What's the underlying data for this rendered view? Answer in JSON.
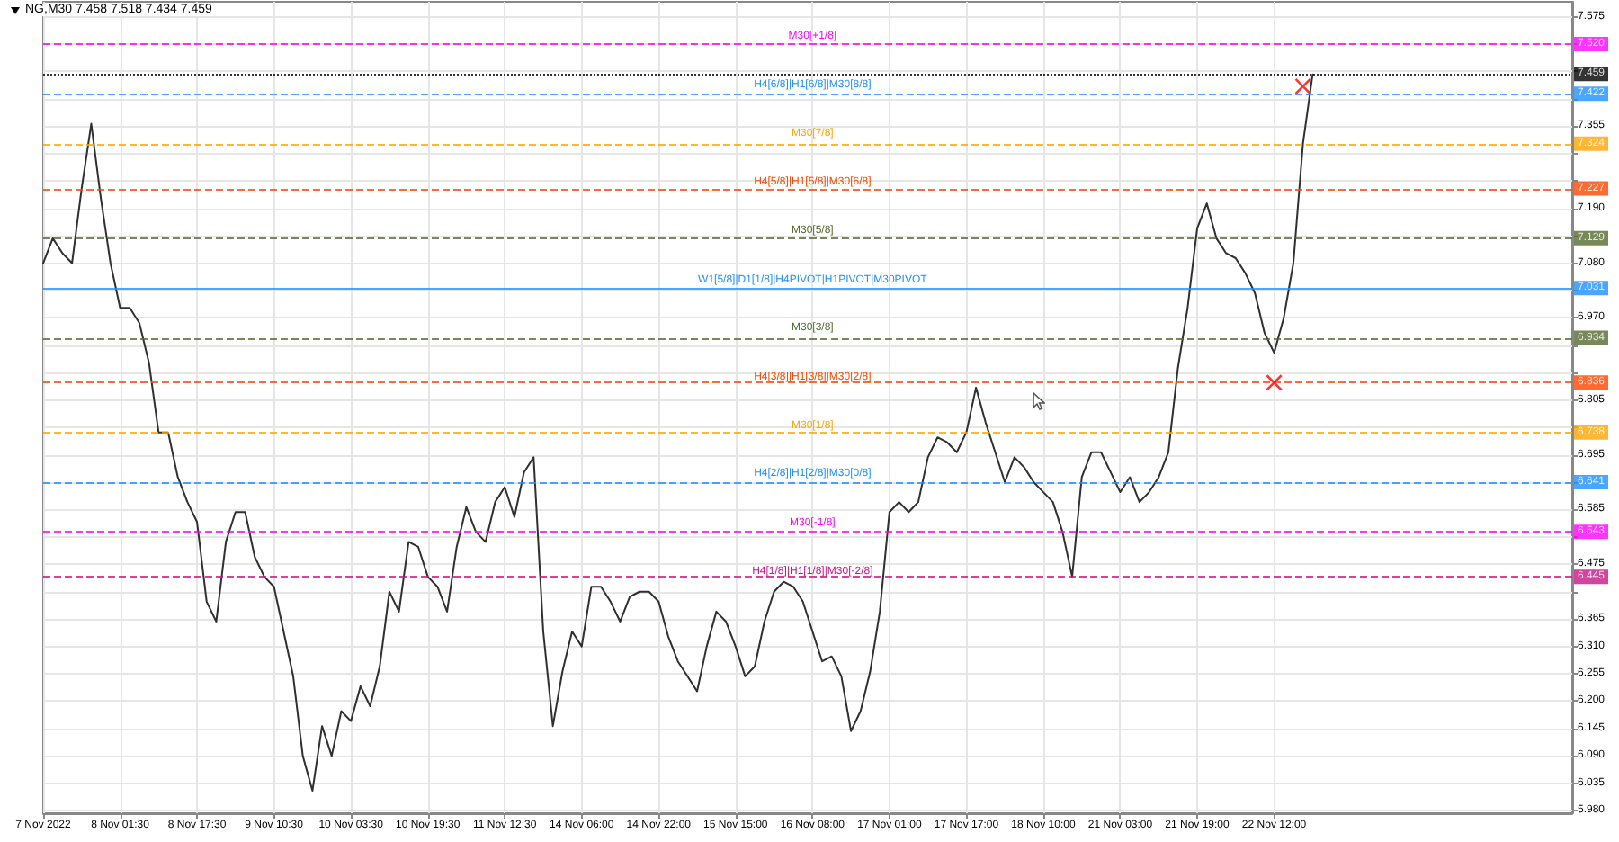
{
  "chart_data": {
    "type": "line",
    "title": "NG,M30 7.458 7.518 7.434 7.459",
    "grid": true,
    "categories": [
      "7 Nov 2022",
      null,
      null,
      null,
      null,
      null,
      null,
      null,
      "8 Nov 01:30",
      null,
      null,
      null,
      null,
      null,
      null,
      null,
      "8 Nov 17:30",
      null,
      null,
      null,
      null,
      null,
      null,
      null,
      "9 Nov 10:30",
      null,
      null,
      null,
      null,
      null,
      null,
      null,
      "10 Nov 03:30",
      null,
      null,
      null,
      null,
      null,
      null,
      null,
      "10 Nov 19:30",
      null,
      null,
      null,
      null,
      null,
      null,
      null,
      "11 Nov 12:30",
      null,
      null,
      null,
      null,
      null,
      null,
      null,
      "14 Nov 06:00",
      null,
      null,
      null,
      null,
      null,
      null,
      null,
      "14 Nov 22:00",
      null,
      null,
      null,
      null,
      null,
      null,
      null,
      "15 Nov 15:00",
      null,
      null,
      null,
      null,
      null,
      null,
      null,
      "16 Nov 08:00",
      null,
      null,
      null,
      null,
      null,
      null,
      null,
      "17 Nov 01:00",
      null,
      null,
      null,
      null,
      null,
      null,
      null,
      "17 Nov 17:00",
      null,
      null,
      null,
      null,
      null,
      null,
      null,
      "18 Nov 10:00",
      null,
      null,
      null,
      null,
      null,
      null,
      null,
      "21 Nov 03:00",
      null,
      null,
      null,
      null,
      null,
      null,
      null,
      "21 Nov 19:00",
      null,
      null,
      null,
      null,
      null,
      null,
      null,
      "22 Nov 12:00",
      null,
      null,
      null,
      null,
      null,
      null,
      null,
      null,
      null,
      null,
      null,
      null,
      null,
      null,
      null,
      null,
      null,
      null,
      null,
      null,
      null,
      null,
      null,
      null,
      null,
      null,
      null,
      null,
      null,
      null,
      null
    ],
    "ylim": [
      5.975,
      7.605
    ],
    "yticks": [
      {
        "value": 5.98,
        "label": "5.980"
      },
      6.035,
      {
        "value": 6.09,
        "label": "6.090"
      },
      6.145,
      {
        "value": 6.2,
        "label": "6.200"
      },
      6.255,
      {
        "value": 6.31,
        "label": "6.310"
      },
      6.365,
      {
        "value": 6.42,
        "label": null
      },
      6.475,
      {
        "value": 6.53,
        "label": null
      },
      6.585,
      {
        "value": 6.64,
        "label": null
      },
      6.695,
      {
        "value": 6.75,
        "label": null
      },
      6.805,
      {
        "value": 6.86,
        "label": null
      },
      {
        "value": 6.915,
        "label": null
      },
      {
        "value": 6.97,
        "label": "6.970"
      },
      {
        "value": 7.025,
        "label": null
      },
      {
        "value": 7.08,
        "label": "7.080"
      },
      {
        "value": 7.135,
        "label": null
      },
      {
        "value": 7.19,
        "label": "7.190"
      },
      {
        "value": 7.245,
        "label": null
      },
      {
        "value": 7.3,
        "label": null
      },
      7.355,
      {
        "value": 7.41,
        "label": null
      },
      {
        "value": 7.465,
        "label": null
      },
      {
        "value": 7.52,
        "label": null
      },
      7.575
    ],
    "annotations": [
      {
        "text": "7.520",
        "y": 7.52
      },
      {
        "text": "7.459",
        "y": 7.459
      },
      {
        "text": "7.422",
        "y": 7.422
      },
      {
        "text": "7.324",
        "y": 7.324
      },
      {
        "text": "7.227",
        "y": 7.227
      },
      {
        "text": "7.129",
        "y": 7.129
      },
      {
        "text": "7.031",
        "y": 7.031
      },
      {
        "text": "6.934",
        "y": 6.934
      },
      {
        "text": "6.836",
        "y": 6.836
      },
      {
        "text": "6.738",
        "y": 6.738
      },
      {
        "text": "6.641",
        "y": 6.641
      },
      {
        "text": "6.543",
        "y": 6.543
      },
      {
        "text": "6.445",
        "y": 6.445
      }
    ],
    "series": [
      {
        "type": "line",
        "color": "#303030",
        "values": [
          7.08,
          7.13,
          7.1,
          7.08,
          7.23,
          7.36,
          7.21,
          7.08,
          6.99,
          6.99,
          6.96,
          6.88,
          6.74,
          6.74,
          6.65,
          6.6,
          6.56,
          6.4,
          6.36,
          6.52,
          6.58,
          6.58,
          6.49,
          6.45,
          6.43,
          6.34,
          6.25,
          6.09,
          6.02,
          6.15,
          6.09,
          6.18,
          6.16,
          6.23,
          6.19,
          6.27,
          6.42,
          6.38,
          6.52,
          6.51,
          6.45,
          6.43,
          6.38,
          6.51,
          6.59,
          6.54,
          6.52,
          6.6,
          6.63,
          6.57,
          6.66,
          6.69,
          6.34,
          6.15,
          6.26,
          6.34,
          6.31,
          6.43,
          6.43,
          6.4,
          6.36,
          6.41,
          6.42,
          6.42,
          6.4,
          6.33,
          6.28,
          6.25,
          6.22,
          6.31,
          6.38,
          6.36,
          6.31,
          6.25,
          6.27,
          6.36,
          6.42,
          6.44,
          6.43,
          6.4,
          6.34,
          6.28,
          6.29,
          6.25,
          6.14,
          6.18,
          6.26,
          6.38,
          6.58,
          6.6,
          6.58,
          6.6,
          6.69,
          6.73,
          6.72,
          6.7,
          6.74,
          6.83,
          6.76,
          6.7,
          6.64,
          6.69,
          6.67,
          6.64,
          6.62,
          6.6,
          6.54,
          6.45,
          6.65,
          6.7,
          6.7,
          6.66,
          6.62,
          6.65,
          6.6,
          6.62,
          6.65,
          6.7,
          6.87,
          6.99,
          7.15,
          7.2,
          7.13,
          7.1,
          7.09,
          7.06,
          7.02,
          6.94,
          6.9,
          6.97,
          7.08,
          7.32,
          7.459,
          null,
          null,
          null,
          null,
          null,
          null,
          null,
          null,
          null,
          null,
          null,
          null,
          null,
          null,
          null,
          null,
          null,
          null,
          null,
          null,
          null,
          null,
          null,
          null,
          null,
          null,
          null
        ]
      },
      {
        "type": "scatter",
        "color": "#ff0000",
        "marker": "cross",
        "values": [
          null,
          null,
          null,
          null,
          null,
          null,
          null,
          null,
          null,
          null,
          null,
          null,
          null,
          null,
          null,
          null,
          null,
          null,
          null,
          null,
          null,
          null,
          null,
          null,
          null,
          null,
          null,
          null,
          null,
          null,
          null,
          null,
          null,
          null,
          null,
          null,
          null,
          null,
          null,
          null,
          null,
          null,
          null,
          null,
          null,
          null,
          null,
          null,
          null,
          null,
          null,
          null,
          null,
          null,
          null,
          null,
          null,
          null,
          null,
          null,
          null,
          null,
          null,
          null,
          null,
          null,
          null,
          null,
          null,
          null,
          null,
          null,
          null,
          null,
          null,
          null,
          null,
          null,
          null,
          null,
          null,
          null,
          null,
          null,
          null,
          null,
          null,
          null,
          null,
          null,
          null,
          null,
          null,
          null,
          null,
          null,
          null,
          null,
          null,
          null,
          null,
          null,
          null,
          null,
          null,
          null,
          null,
          null,
          null,
          null,
          null,
          null,
          null,
          null,
          null,
          null,
          null,
          null,
          null,
          null,
          null,
          null,
          null,
          null,
          null,
          null,
          null,
          null,
          6.84,
          null,
          null,
          7.435,
          null,
          null,
          null,
          null,
          null,
          null,
          null,
          null,
          null,
          null,
          null,
          null,
          null,
          null,
          null,
          null,
          null,
          null,
          null,
          null,
          null,
          null,
          null,
          null,
          null,
          null,
          null,
          null
        ]
      }
    ],
    "ref_lines": [
      {
        "axis": "y",
        "value": 7.52,
        "label": "M30[+1/8]",
        "color": "#ff00ff",
        "line_style": "dashed"
      },
      {
        "axis": "y",
        "value": 7.459,
        "color": "#000000",
        "line_style": "dotted"
      },
      {
        "axis": "y",
        "value": 7.422,
        "label": "H4[6/8]|H1[6/8]|M30[8/8]",
        "color": "#1e90ff",
        "line_style": "dashed"
      },
      {
        "axis": "y",
        "value": 7.324,
        "label": "M30[7/8]",
        "color": "#ffa500",
        "line_style": "dashed"
      },
      {
        "axis": "y",
        "value": 7.227,
        "label": "H4[5/8]|H1[5/8]|M30[6/8]",
        "color": "#ff4500",
        "line_style": "dashed"
      },
      {
        "axis": "y",
        "value": 7.129,
        "label": "M30[5/8]",
        "color": "#556b2f",
        "line_style": "dashed"
      },
      {
        "axis": "y",
        "value": 7.031,
        "label": "W1[5/8]|D1[1/8]|H4PIVOT|H1PIVOT|M30PIVOT",
        "color": "#1e90ff",
        "line_style": "solid"
      },
      {
        "axis": "y",
        "value": 6.934,
        "label": "M30[3/8]",
        "color": "#556b2f",
        "line_style": "dashed"
      },
      {
        "axis": "y",
        "value": 6.836,
        "label": "H4[3/8]|H1[3/8]|M30[2/8]",
        "color": "#ff4500",
        "line_style": "dashed"
      },
      {
        "axis": "y",
        "value": 6.738,
        "label": "M30[1/8]",
        "color": "#ffa500",
        "line_style": "dashed"
      },
      {
        "axis": "y",
        "value": 6.641,
        "label": "H4[2/8]|H1[2/8]|M30[0/8]",
        "color": "#1e90ff",
        "line_style": "dashed"
      },
      {
        "axis": "y",
        "value": 6.543,
        "label": "M30[-1/8]",
        "color": "#ff00ff",
        "line_style": "dashed"
      },
      {
        "axis": "y",
        "value": 6.445,
        "label": "H4[1/8]|H1[1/8]|M30[-2/8]",
        "color": "#c71585",
        "line_style": "dashed"
      }
    ]
  }
}
